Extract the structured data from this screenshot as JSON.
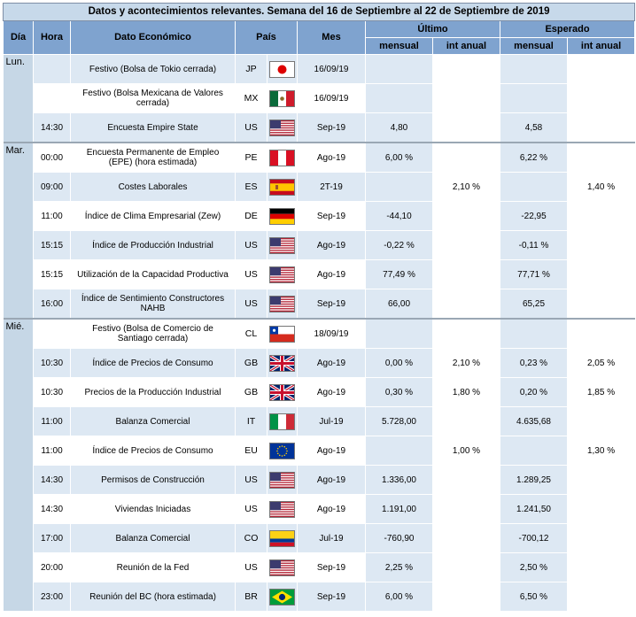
{
  "title": "Datos y acontecimientos relevantes. Semana del 16 de Septiembre al 22 de Septiembre de 2019",
  "headers": {
    "dia": "Día",
    "hora": "Hora",
    "dato": "Dato Económico",
    "pais": "País",
    "mes": "Mes",
    "ultimo": "Último",
    "esperado": "Esperado",
    "mensual": "mensual",
    "int_anual": "int anual"
  },
  "rows": [
    {
      "day": "Lun.",
      "hora": "",
      "dato": "Festivo (Bolsa de Tokio cerrada)",
      "pais": "JP",
      "flag": "jp-flag-icon",
      "mes": "16/09/19",
      "ult_m": "",
      "ult_a": "",
      "esp_m": "",
      "esp_a": ""
    },
    {
      "day": "",
      "hora": "",
      "dato": "Festivo (Bolsa Mexicana de Valores cerrada)",
      "pais": "MX",
      "flag": "mx-flag-icon",
      "mes": "16/09/19",
      "ult_m": "",
      "ult_a": "",
      "esp_m": "",
      "esp_a": ""
    },
    {
      "day": "",
      "hora": "14:30",
      "dato": "Encuesta Empire State",
      "pais": "US",
      "flag": "us-flag-icon",
      "mes": "Sep-19",
      "ult_m": "4,80",
      "ult_a": "",
      "esp_m": "4,58",
      "esp_a": ""
    },
    {
      "day": "Mar.",
      "hora": "00:00",
      "dato": "Encuesta Permanente de Empleo (EPE) (hora estimada)",
      "pais": "PE",
      "flag": "pe-flag-icon",
      "mes": "Ago-19",
      "ult_m": "6,00 %",
      "ult_a": "",
      "esp_m": "6,22 %",
      "esp_a": ""
    },
    {
      "day": "",
      "hora": "09:00",
      "dato": "Costes Laborales",
      "pais": "ES",
      "flag": "es-flag-icon",
      "mes": "2T-19",
      "ult_m": "",
      "ult_a": "2,10 %",
      "esp_m": "",
      "esp_a": "1,40 %"
    },
    {
      "day": "",
      "hora": "11:00",
      "dato": "Índice de Clima Empresarial (Zew)",
      "pais": "DE",
      "flag": "de-flag-icon",
      "mes": "Sep-19",
      "ult_m": "-44,10",
      "ult_a": "",
      "esp_m": "-22,95",
      "esp_a": ""
    },
    {
      "day": "",
      "hora": "15:15",
      "dato": "Índice de Producción Industrial",
      "pais": "US",
      "flag": "us-flag-icon",
      "mes": "Ago-19",
      "ult_m": "-0,22 %",
      "ult_a": "",
      "esp_m": "-0,11 %",
      "esp_a": ""
    },
    {
      "day": "",
      "hora": "15:15",
      "dato": "Utilización de la Capacidad Productiva",
      "pais": "US",
      "flag": "us-flag-icon",
      "mes": "Ago-19",
      "ult_m": "77,49 %",
      "ult_a": "",
      "esp_m": "77,71 %",
      "esp_a": ""
    },
    {
      "day": "",
      "hora": "16:00",
      "dato": "Índice de Sentimiento Constructores NAHB",
      "pais": "US",
      "flag": "us-flag-icon",
      "mes": "Sep-19",
      "ult_m": "66,00",
      "ult_a": "",
      "esp_m": "65,25",
      "esp_a": ""
    },
    {
      "day": "Mié.",
      "hora": "",
      "dato": "Festivo (Bolsa de Comercio de Santiago cerrada)",
      "pais": "CL",
      "flag": "cl-flag-icon",
      "mes": "18/09/19",
      "ult_m": "",
      "ult_a": "",
      "esp_m": "",
      "esp_a": ""
    },
    {
      "day": "",
      "hora": "10:30",
      "dato": "Índice de Precios de Consumo",
      "pais": "GB",
      "flag": "gb-flag-icon",
      "mes": "Ago-19",
      "ult_m": "0,00 %",
      "ult_a": "2,10 %",
      "esp_m": "0,23 %",
      "esp_a": "2,05 %"
    },
    {
      "day": "",
      "hora": "10:30",
      "dato": "Precios de la Producción Industrial",
      "pais": "GB",
      "flag": "gb-flag-icon",
      "mes": "Ago-19",
      "ult_m": "0,30 %",
      "ult_a": "1,80 %",
      "esp_m": "0,20 %",
      "esp_a": "1,85 %"
    },
    {
      "day": "",
      "hora": "11:00",
      "dato": "Balanza Comercial",
      "pais": "IT",
      "flag": "it-flag-icon",
      "mes": "Jul-19",
      "ult_m": "5.728,00",
      "ult_a": "",
      "esp_m": "4.635,68",
      "esp_a": ""
    },
    {
      "day": "",
      "hora": "11:00",
      "dato": "Índice de Precios de Consumo",
      "pais": "EU",
      "flag": "eu-flag-icon",
      "mes": "Ago-19",
      "ult_m": "",
      "ult_a": "1,00 %",
      "esp_m": "",
      "esp_a": "1,30 %"
    },
    {
      "day": "",
      "hora": "14:30",
      "dato": "Permisos de Construcción",
      "pais": "US",
      "flag": "us-flag-icon",
      "mes": "Ago-19",
      "ult_m": "1.336,00",
      "ult_a": "",
      "esp_m": "1.289,25",
      "esp_a": ""
    },
    {
      "day": "",
      "hora": "14:30",
      "dato": "Viviendas Iniciadas",
      "pais": "US",
      "flag": "us-flag-icon",
      "mes": "Ago-19",
      "ult_m": "1.191,00",
      "ult_a": "",
      "esp_m": "1.241,50",
      "esp_a": ""
    },
    {
      "day": "",
      "hora": "17:00",
      "dato": "Balanza Comercial",
      "pais": "CO",
      "flag": "co-flag-icon",
      "mes": "Jul-19",
      "ult_m": "-760,90",
      "ult_a": "",
      "esp_m": "-700,12",
      "esp_a": ""
    },
    {
      "day": "",
      "hora": "20:00",
      "dato": "Reunión de la Fed",
      "pais": "US",
      "flag": "us-flag-icon",
      "mes": "Sep-19",
      "ult_m": "2,25 %",
      "ult_a": "",
      "esp_m": "2,50 %",
      "esp_a": ""
    },
    {
      "day": "",
      "hora": "23:00",
      "dato": "Reunión del BC (hora estimada)",
      "pais": "BR",
      "flag": "br-flag-icon",
      "mes": "Sep-19",
      "ult_m": "6,00 %",
      "ult_a": "",
      "esp_m": "6,50 %",
      "esp_a": ""
    }
  ],
  "colors": {
    "header_bg": "#7fa3cf",
    "title_bg": "#c7d9ea",
    "row_shade": "#dde8f3",
    "day_bg": "#c6d7e6"
  }
}
